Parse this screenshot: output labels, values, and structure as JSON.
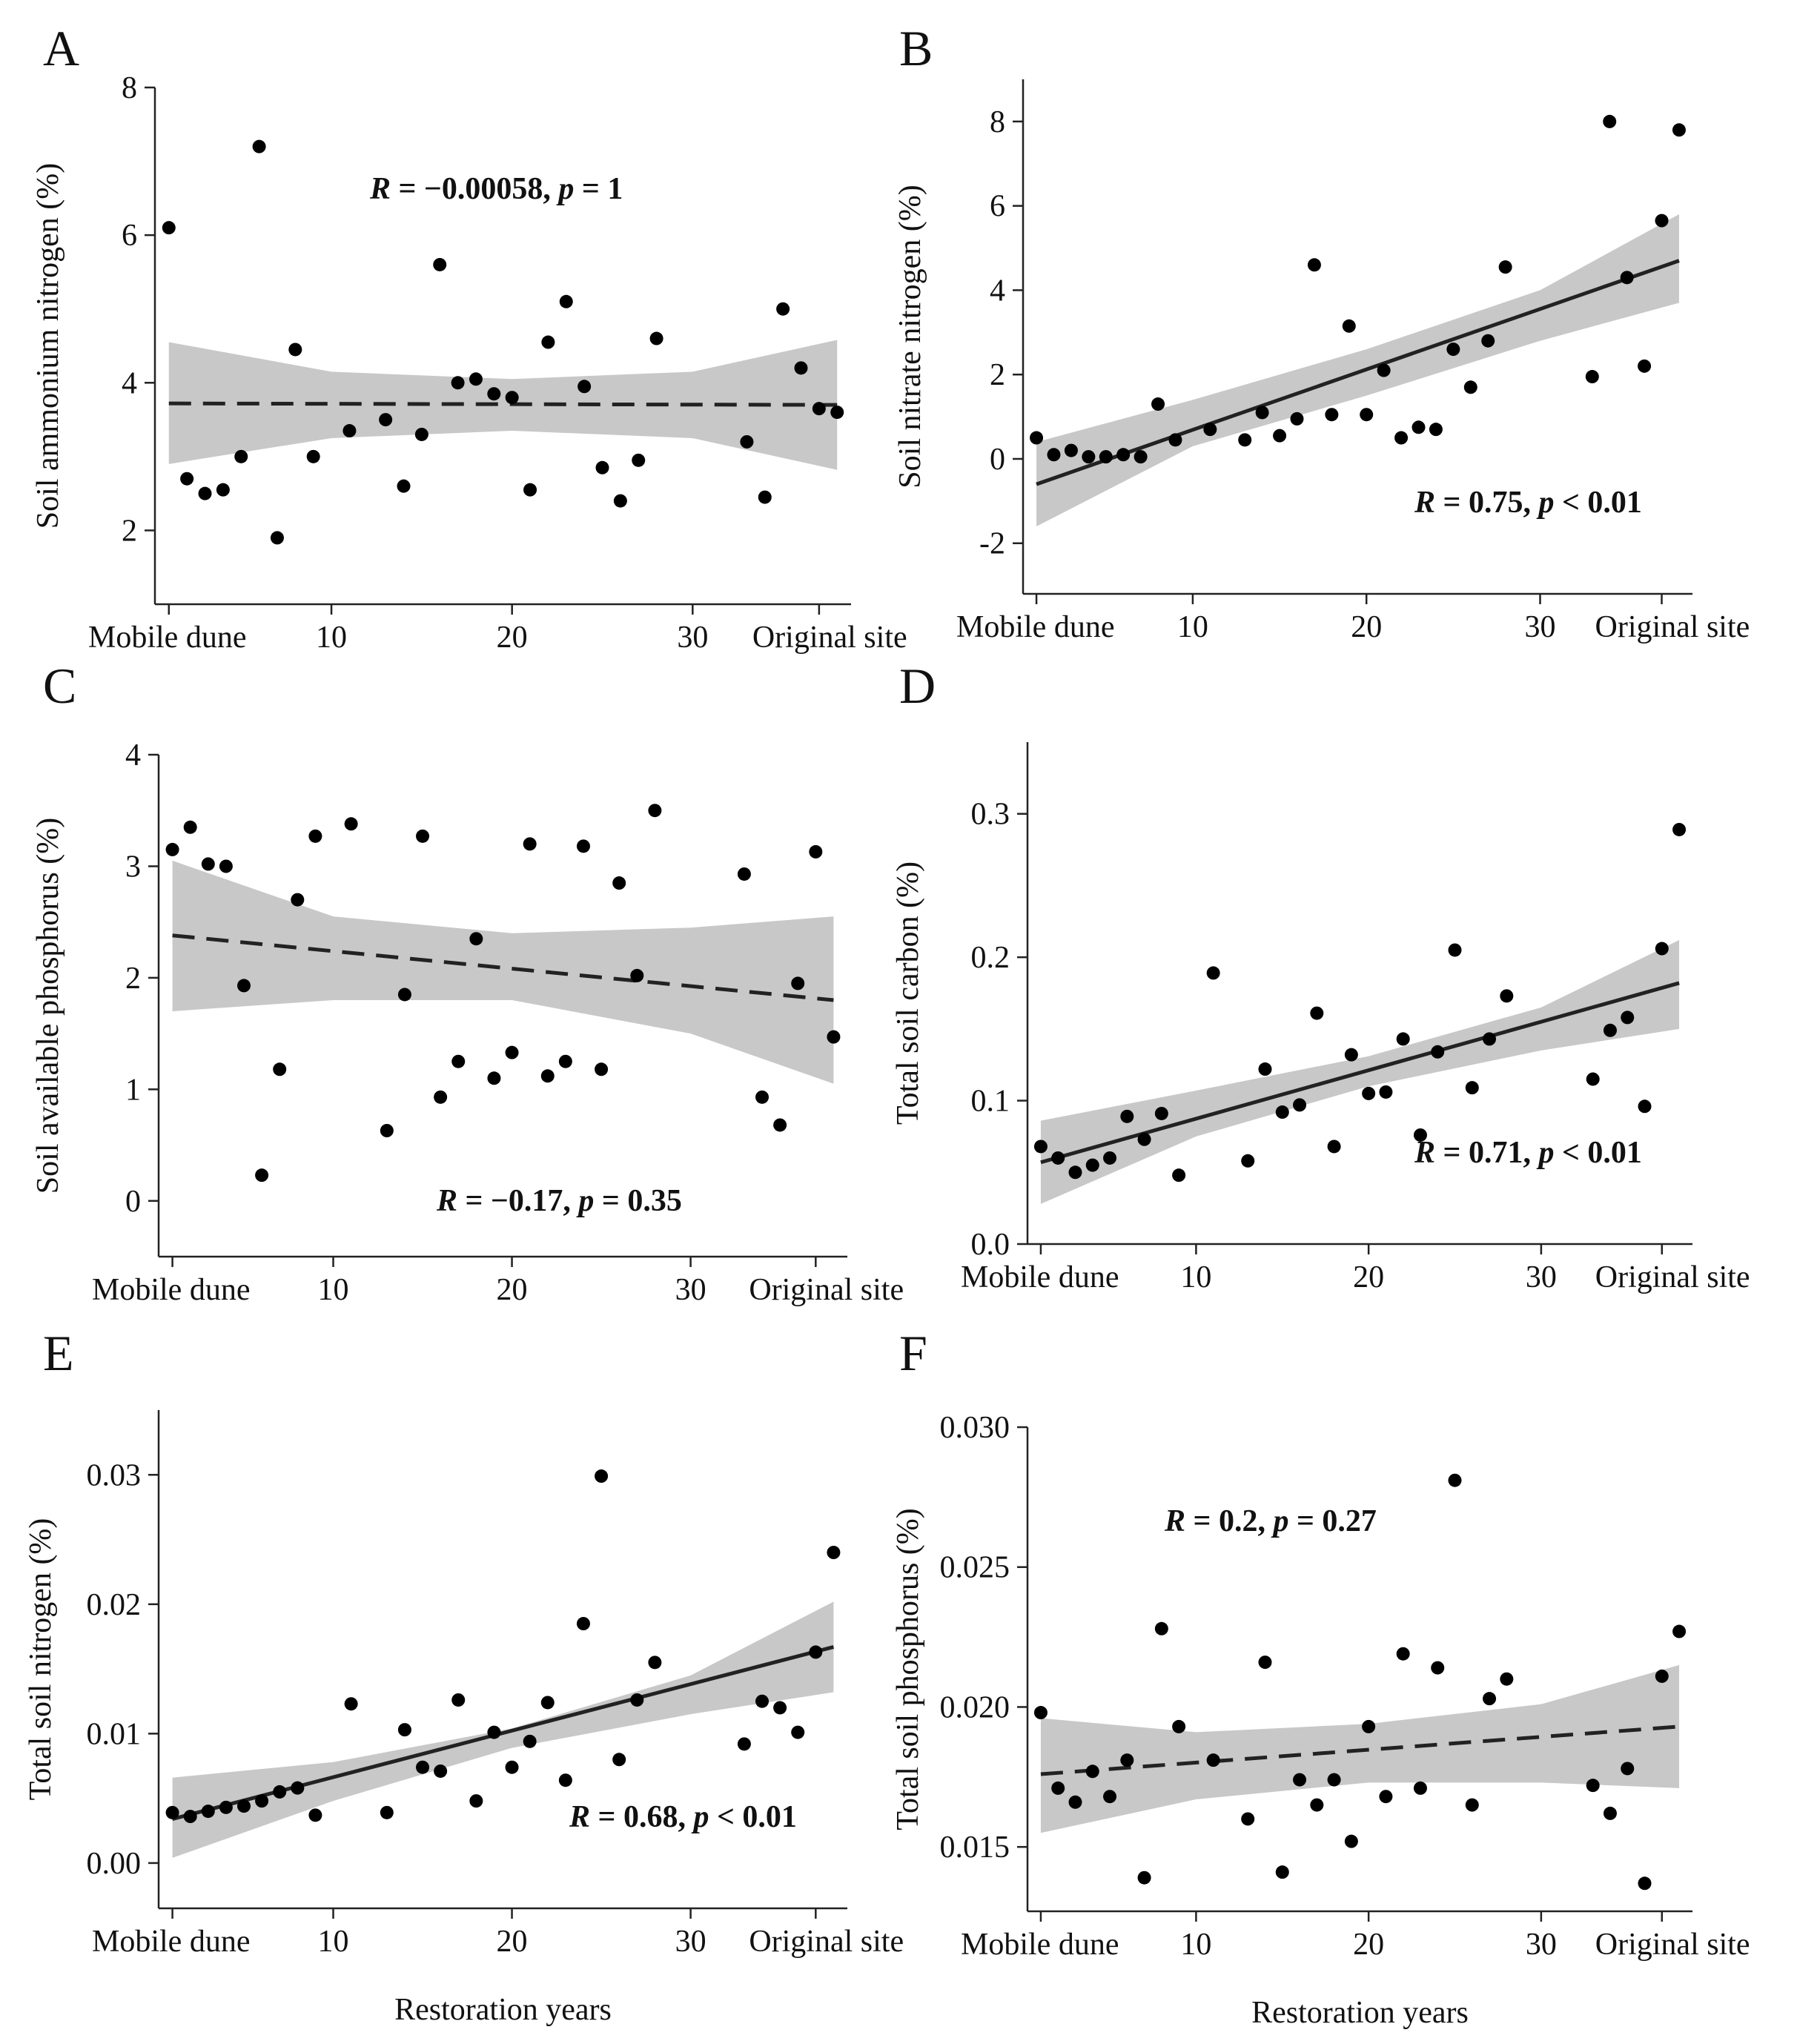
{
  "colors": {
    "point": "#000000",
    "band": "#c8c8c8",
    "axis": "#222222",
    "line": "#222222"
  },
  "chart_data": [
    {
      "panel": "A",
      "type": "scatter",
      "ylabel": "Soil ammonium nitrogen (%)",
      "xlabel": "",
      "xlim": [
        1,
        38
      ],
      "ylim": [
        1,
        8
      ],
      "yticks": [
        2,
        4,
        6,
        8
      ],
      "xticks": [
        {
          "value": 1,
          "label": "Mobile dune"
        },
        {
          "value": 10,
          "label": "10"
        },
        {
          "value": 20,
          "label": "20"
        },
        {
          "value": 30,
          "label": "30"
        },
        {
          "value": 37,
          "label": "Original site"
        }
      ],
      "stat": {
        "r_label": "R",
        "r_value": "−0.00058",
        "p_label": "p",
        "p_rel": "=",
        "p_value": "1",
        "position": "top-center"
      },
      "fit": {
        "style": "dashed",
        "x": [
          1,
          38
        ],
        "y": [
          3.72,
          3.7
        ]
      },
      "band": {
        "x": [
          1,
          10,
          20,
          30,
          38
        ],
        "lower": [
          2.9,
          3.25,
          3.35,
          3.25,
          2.82
        ],
        "upper": [
          4.55,
          4.15,
          4.05,
          4.15,
          4.58
        ]
      },
      "points": [
        [
          1,
          6.1
        ],
        [
          2,
          2.7
        ],
        [
          3,
          2.5
        ],
        [
          4,
          2.55
        ],
        [
          5,
          3.0
        ],
        [
          6,
          7.2
        ],
        [
          7,
          1.9
        ],
        [
          8,
          4.45
        ],
        [
          9,
          3.0
        ],
        [
          11,
          3.35
        ],
        [
          13,
          3.5
        ],
        [
          14,
          2.6
        ],
        [
          15,
          3.3
        ],
        [
          16,
          5.6
        ],
        [
          17,
          4.0
        ],
        [
          18,
          4.05
        ],
        [
          19,
          3.85
        ],
        [
          20,
          3.8
        ],
        [
          21,
          2.55
        ],
        [
          22,
          4.55
        ],
        [
          23,
          5.1
        ],
        [
          24,
          3.95
        ],
        [
          25,
          2.85
        ],
        [
          26,
          2.4
        ],
        [
          27,
          2.95
        ],
        [
          28,
          4.6
        ],
        [
          33,
          3.2
        ],
        [
          34,
          2.45
        ],
        [
          35,
          5.0
        ],
        [
          36,
          4.2
        ],
        [
          37,
          3.65
        ],
        [
          38,
          3.6
        ]
      ]
    },
    {
      "panel": "B",
      "type": "scatter",
      "ylabel": "Soil nitrate nitrogen (%)",
      "xlabel": "",
      "xlim": [
        1,
        38
      ],
      "ylim": [
        -3.2,
        9
      ],
      "yticks": [
        -2,
        0,
        2,
        4,
        6,
        8
      ],
      "xticks": [
        {
          "value": 1,
          "label": "Mobile dune"
        },
        {
          "value": 10,
          "label": "10"
        },
        {
          "value": 20,
          "label": "20"
        },
        {
          "value": 30,
          "label": "30"
        },
        {
          "value": 37,
          "label": "Original site"
        }
      ],
      "stat": {
        "r_label": "R",
        "r_value": "0.75",
        "p_label": "p",
        "p_rel": "<",
        "p_value": "0.01",
        "position": "bottom-right"
      },
      "fit": {
        "style": "solid",
        "x": [
          1,
          38
        ],
        "y": [
          -0.6,
          4.7
        ]
      },
      "band": {
        "x": [
          1,
          10,
          20,
          30,
          38
        ],
        "lower": [
          -1.6,
          0.3,
          1.5,
          2.8,
          3.7
        ],
        "upper": [
          0.4,
          1.4,
          2.6,
          4.0,
          5.8
        ]
      },
      "points": [
        [
          1,
          0.5
        ],
        [
          2,
          0.1
        ],
        [
          3,
          0.2
        ],
        [
          4,
          0.05
        ],
        [
          5,
          0.05
        ],
        [
          6,
          0.1
        ],
        [
          7,
          0.05
        ],
        [
          8,
          1.3
        ],
        [
          9,
          0.45
        ],
        [
          11,
          0.7
        ],
        [
          13,
          0.45
        ],
        [
          14,
          1.1
        ],
        [
          15,
          0.55
        ],
        [
          16,
          0.95
        ],
        [
          17,
          4.6
        ],
        [
          18,
          1.05
        ],
        [
          19,
          3.15
        ],
        [
          20,
          1.05
        ],
        [
          21,
          2.1
        ],
        [
          22,
          0.5
        ],
        [
          23,
          0.75
        ],
        [
          24,
          0.7
        ],
        [
          25,
          2.6
        ],
        [
          26,
          1.7
        ],
        [
          27,
          2.8
        ],
        [
          28,
          4.55
        ],
        [
          33,
          1.95
        ],
        [
          34,
          8.0
        ],
        [
          35,
          4.3
        ],
        [
          36,
          2.2
        ],
        [
          37,
          5.65
        ],
        [
          38,
          7.8
        ]
      ]
    },
    {
      "panel": "C",
      "type": "scatter",
      "ylabel": "Soil available phosphorus (%)",
      "xlabel": "",
      "xlim": [
        1,
        38
      ],
      "ylim": [
        -0.5,
        4
      ],
      "yticks": [
        0,
        1,
        2,
        3,
        4
      ],
      "xticks": [
        {
          "value": 1,
          "label": "Mobile dune"
        },
        {
          "value": 10,
          "label": "10"
        },
        {
          "value": 20,
          "label": "20"
        },
        {
          "value": 30,
          "label": "30"
        },
        {
          "value": 37,
          "label": "Original site"
        }
      ],
      "stat": {
        "r_label": "R",
        "r_value": "−0.17",
        "p_label": "p",
        "p_rel": "=",
        "p_value": "0.35",
        "position": "bottom-center"
      },
      "fit": {
        "style": "dashed",
        "x": [
          1,
          38
        ],
        "y": [
          2.38,
          1.8
        ]
      },
      "band": {
        "x": [
          1,
          10,
          20,
          30,
          38
        ],
        "lower": [
          1.7,
          1.8,
          1.8,
          1.5,
          1.05
        ],
        "upper": [
          3.05,
          2.55,
          2.4,
          2.45,
          2.55
        ]
      },
      "points": [
        [
          1,
          3.15
        ],
        [
          2,
          3.35
        ],
        [
          3,
          3.02
        ],
        [
          4,
          3.0
        ],
        [
          5,
          1.93
        ],
        [
          6,
          0.23
        ],
        [
          7,
          1.18
        ],
        [
          8,
          2.7
        ],
        [
          9,
          3.27
        ],
        [
          11,
          3.38
        ],
        [
          13,
          0.63
        ],
        [
          14,
          1.85
        ],
        [
          15,
          3.27
        ],
        [
          16,
          0.93
        ],
        [
          17,
          1.25
        ],
        [
          18,
          2.35
        ],
        [
          19,
          1.1
        ],
        [
          20,
          1.33
        ],
        [
          21,
          3.2
        ],
        [
          22,
          1.12
        ],
        [
          23,
          1.25
        ],
        [
          24,
          3.18
        ],
        [
          25,
          1.18
        ],
        [
          26,
          2.85
        ],
        [
          27,
          2.02
        ],
        [
          28,
          3.5
        ],
        [
          33,
          2.93
        ],
        [
          34,
          0.93
        ],
        [
          35,
          0.68
        ],
        [
          36,
          1.95
        ],
        [
          37,
          3.13
        ],
        [
          38,
          1.47
        ]
      ]
    },
    {
      "panel": "D",
      "type": "scatter",
      "ylabel": "Total soil carbon (%)",
      "xlabel": "",
      "xlim": [
        1,
        38
      ],
      "ylim": [
        0,
        0.35
      ],
      "yticks": [
        0.0,
        0.1,
        0.2,
        0.3
      ],
      "ytick_labels": [
        "0.0",
        "0.1",
        "0.2",
        "0.3"
      ],
      "xticks": [
        {
          "value": 1,
          "label": "Mobile dune"
        },
        {
          "value": 10,
          "label": "10"
        },
        {
          "value": 20,
          "label": "20"
        },
        {
          "value": 30,
          "label": "30"
        },
        {
          "value": 37,
          "label": "Original site"
        }
      ],
      "stat": {
        "r_label": "R",
        "r_value": "0.71",
        "p_label": "p",
        "p_rel": "<",
        "p_value": "0.01",
        "position": "bottom-right"
      },
      "fit": {
        "style": "solid",
        "x": [
          1,
          38
        ],
        "y": [
          0.057,
          0.182
        ]
      },
      "band": {
        "x": [
          1,
          10,
          20,
          30,
          38
        ],
        "lower": [
          0.028,
          0.075,
          0.11,
          0.135,
          0.15
        ],
        "upper": [
          0.086,
          0.107,
          0.131,
          0.165,
          0.212
        ]
      },
      "points": [
        [
          1,
          0.068
        ],
        [
          2,
          0.06
        ],
        [
          3,
          0.05
        ],
        [
          4,
          0.055
        ],
        [
          5,
          0.06
        ],
        [
          6,
          0.089
        ],
        [
          7,
          0.073
        ],
        [
          8,
          0.091
        ],
        [
          9,
          0.048
        ],
        [
          11,
          0.189
        ],
        [
          13,
          0.058
        ],
        [
          14,
          0.122
        ],
        [
          15,
          0.092
        ],
        [
          16,
          0.097
        ],
        [
          17,
          0.161
        ],
        [
          18,
          0.068
        ],
        [
          19,
          0.132
        ],
        [
          20,
          0.105
        ],
        [
          21,
          0.106
        ],
        [
          22,
          0.143
        ],
        [
          23,
          0.076
        ],
        [
          24,
          0.134
        ],
        [
          25,
          0.205
        ],
        [
          26,
          0.109
        ],
        [
          27,
          0.143
        ],
        [
          28,
          0.173
        ],
        [
          33,
          0.115
        ],
        [
          34,
          0.149
        ],
        [
          35,
          0.158
        ],
        [
          36,
          0.096
        ],
        [
          37,
          0.206
        ],
        [
          38,
          0.289
        ]
      ]
    },
    {
      "panel": "E",
      "type": "scatter",
      "ylabel": "Total soil nitrogen (%)",
      "xlabel": "Restoration years",
      "xlim": [
        1,
        38
      ],
      "ylim": [
        -0.0035,
        0.035
      ],
      "yticks": [
        0.0,
        0.01,
        0.02,
        0.03
      ],
      "ytick_labels": [
        "0.00",
        "0.01",
        "0.02",
        "0.03"
      ],
      "xticks": [
        {
          "value": 1,
          "label": "Mobile dune"
        },
        {
          "value": 10,
          "label": "10"
        },
        {
          "value": 20,
          "label": "20"
        },
        {
          "value": 30,
          "label": "30"
        },
        {
          "value": 37,
          "label": "Original site"
        }
      ],
      "stat": {
        "r_label": "R",
        "r_value": "0.68",
        "p_label": "p",
        "p_rel": "<",
        "p_value": "0.01",
        "position": "bottom-right"
      },
      "fit": {
        "style": "solid",
        "x": [
          1,
          38
        ],
        "y": [
          0.0034,
          0.0167
        ]
      },
      "band": {
        "x": [
          1,
          10,
          20,
          30,
          38
        ],
        "lower": [
          0.0004,
          0.0048,
          0.0089,
          0.0115,
          0.0132
        ],
        "upper": [
          0.0066,
          0.0078,
          0.0104,
          0.0145,
          0.0202
        ]
      },
      "points": [
        [
          1,
          0.0039
        ],
        [
          2,
          0.0036
        ],
        [
          3,
          0.004
        ],
        [
          4,
          0.0043
        ],
        [
          5,
          0.0044
        ],
        [
          6,
          0.0048
        ],
        [
          7,
          0.0055
        ],
        [
          8,
          0.0058
        ],
        [
          9,
          0.0037
        ],
        [
          11,
          0.0123
        ],
        [
          13,
          0.0039
        ],
        [
          14,
          0.0103
        ],
        [
          15,
          0.0074
        ],
        [
          16,
          0.0071
        ],
        [
          17,
          0.0126
        ],
        [
          18,
          0.0048
        ],
        [
          19,
          0.0101
        ],
        [
          20,
          0.0074
        ],
        [
          21,
          0.0094
        ],
        [
          22,
          0.0124
        ],
        [
          23,
          0.0064
        ],
        [
          24,
          0.0185
        ],
        [
          25,
          0.0299
        ],
        [
          26,
          0.008
        ],
        [
          27,
          0.0126
        ],
        [
          28,
          0.0155
        ],
        [
          33,
          0.0092
        ],
        [
          34,
          0.0125
        ],
        [
          35,
          0.012
        ],
        [
          36,
          0.0101
        ],
        [
          37,
          0.0163
        ],
        [
          38,
          0.024
        ]
      ]
    },
    {
      "panel": "F",
      "type": "scatter",
      "ylabel": "Total soil phosphorus (%)",
      "xlabel": "Restoration years",
      "xlim": [
        1,
        38
      ],
      "ylim": [
        0.0127,
        0.03
      ],
      "yticks": [
        0.015,
        0.02,
        0.025,
        0.03
      ],
      "ytick_labels": [
        "0.015",
        "0.020",
        "0.025",
        "0.030"
      ],
      "xticks": [
        {
          "value": 1,
          "label": "Mobile dune"
        },
        {
          "value": 10,
          "label": "10"
        },
        {
          "value": 20,
          "label": "20"
        },
        {
          "value": 30,
          "label": "30"
        },
        {
          "value": 37,
          "label": "Original site"
        }
      ],
      "stat": {
        "r_label": "R",
        "r_value": "0.2",
        "p_label": "p",
        "p_rel": "=",
        "p_value": "0.27",
        "position": "top-left"
      },
      "fit": {
        "style": "dashed",
        "x": [
          1,
          38
        ],
        "y": [
          0.0176,
          0.0193
        ]
      },
      "band": {
        "x": [
          1,
          10,
          20,
          30,
          38
        ],
        "lower": [
          0.0155,
          0.0167,
          0.0173,
          0.0173,
          0.0171
        ],
        "upper": [
          0.0196,
          0.0191,
          0.0194,
          0.0201,
          0.0215
        ]
      },
      "points": [
        [
          1,
          0.0198
        ],
        [
          2,
          0.0171
        ],
        [
          3,
          0.0166
        ],
        [
          4,
          0.0177
        ],
        [
          5,
          0.0168
        ],
        [
          6,
          0.0181
        ],
        [
          7,
          0.0139
        ],
        [
          8,
          0.0228
        ],
        [
          9,
          0.0193
        ],
        [
          11,
          0.0181
        ],
        [
          13,
          0.016
        ],
        [
          14,
          0.0216
        ],
        [
          15,
          0.0141
        ],
        [
          16,
          0.0174
        ],
        [
          17,
          0.0165
        ],
        [
          18,
          0.0174
        ],
        [
          19,
          0.0152
        ],
        [
          20,
          0.0193
        ],
        [
          21,
          0.0168
        ],
        [
          22,
          0.0219
        ],
        [
          23,
          0.0171
        ],
        [
          24,
          0.0214
        ],
        [
          25,
          0.0281
        ],
        [
          26,
          0.0165
        ],
        [
          27,
          0.0203
        ],
        [
          28,
          0.021
        ],
        [
          33,
          0.0172
        ],
        [
          34,
          0.0162
        ],
        [
          35,
          0.0178
        ],
        [
          36,
          0.0137
        ],
        [
          37,
          0.0211
        ],
        [
          38,
          0.0227
        ]
      ]
    }
  ]
}
